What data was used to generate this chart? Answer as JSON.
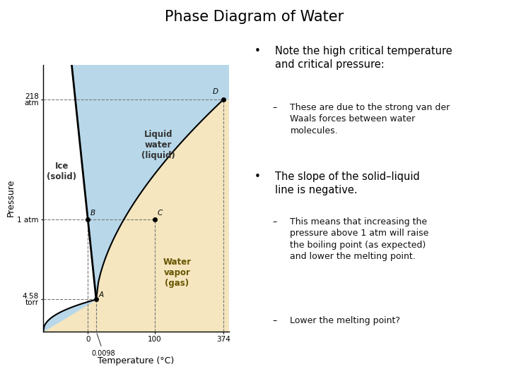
{
  "title": "Phase Diagram of Water",
  "title_fontsize": 15,
  "background_color": "#ffffff",
  "solid_color": "#b8d8ea",
  "liquid_color": "#b8d8ea",
  "gas_color": "#f5e6bf",
  "xlabel": "Temperature (°C)",
  "ylabel": "Pressure",
  "xlabel_fontsize": 9,
  "ylabel_fontsize": 9,
  "ytick_labels": [
    "4.58\ntorr",
    "1 atm",
    "218\natm"
  ],
  "ytick_positions": [
    0.12,
    0.42,
    0.87
  ],
  "xtick_labels": [
    "0",
    "100",
    "374"
  ],
  "xtick_positions": [
    0.24,
    0.6,
    0.97
  ],
  "point_A": [
    0.285,
    0.12
  ],
  "point_B": [
    0.24,
    0.42
  ],
  "point_C": [
    0.6,
    0.42
  ],
  "point_D": [
    0.97,
    0.87
  ],
  "bullet1_title": "Note the high critical temperature\nand critical pressure:",
  "bullet1_sub": "These are due to the strong van der\nWaals forces between water\nmolecules.",
  "bullet2_title": "The slope of the solid–liquid\nline is negative.",
  "bullet2_sub1": "This means that increasing the\npressure above 1 atm will raise\nthe boiling point (as expected)\nand lower the melting point.",
  "bullet2_sub2": "Lower the melting point?"
}
